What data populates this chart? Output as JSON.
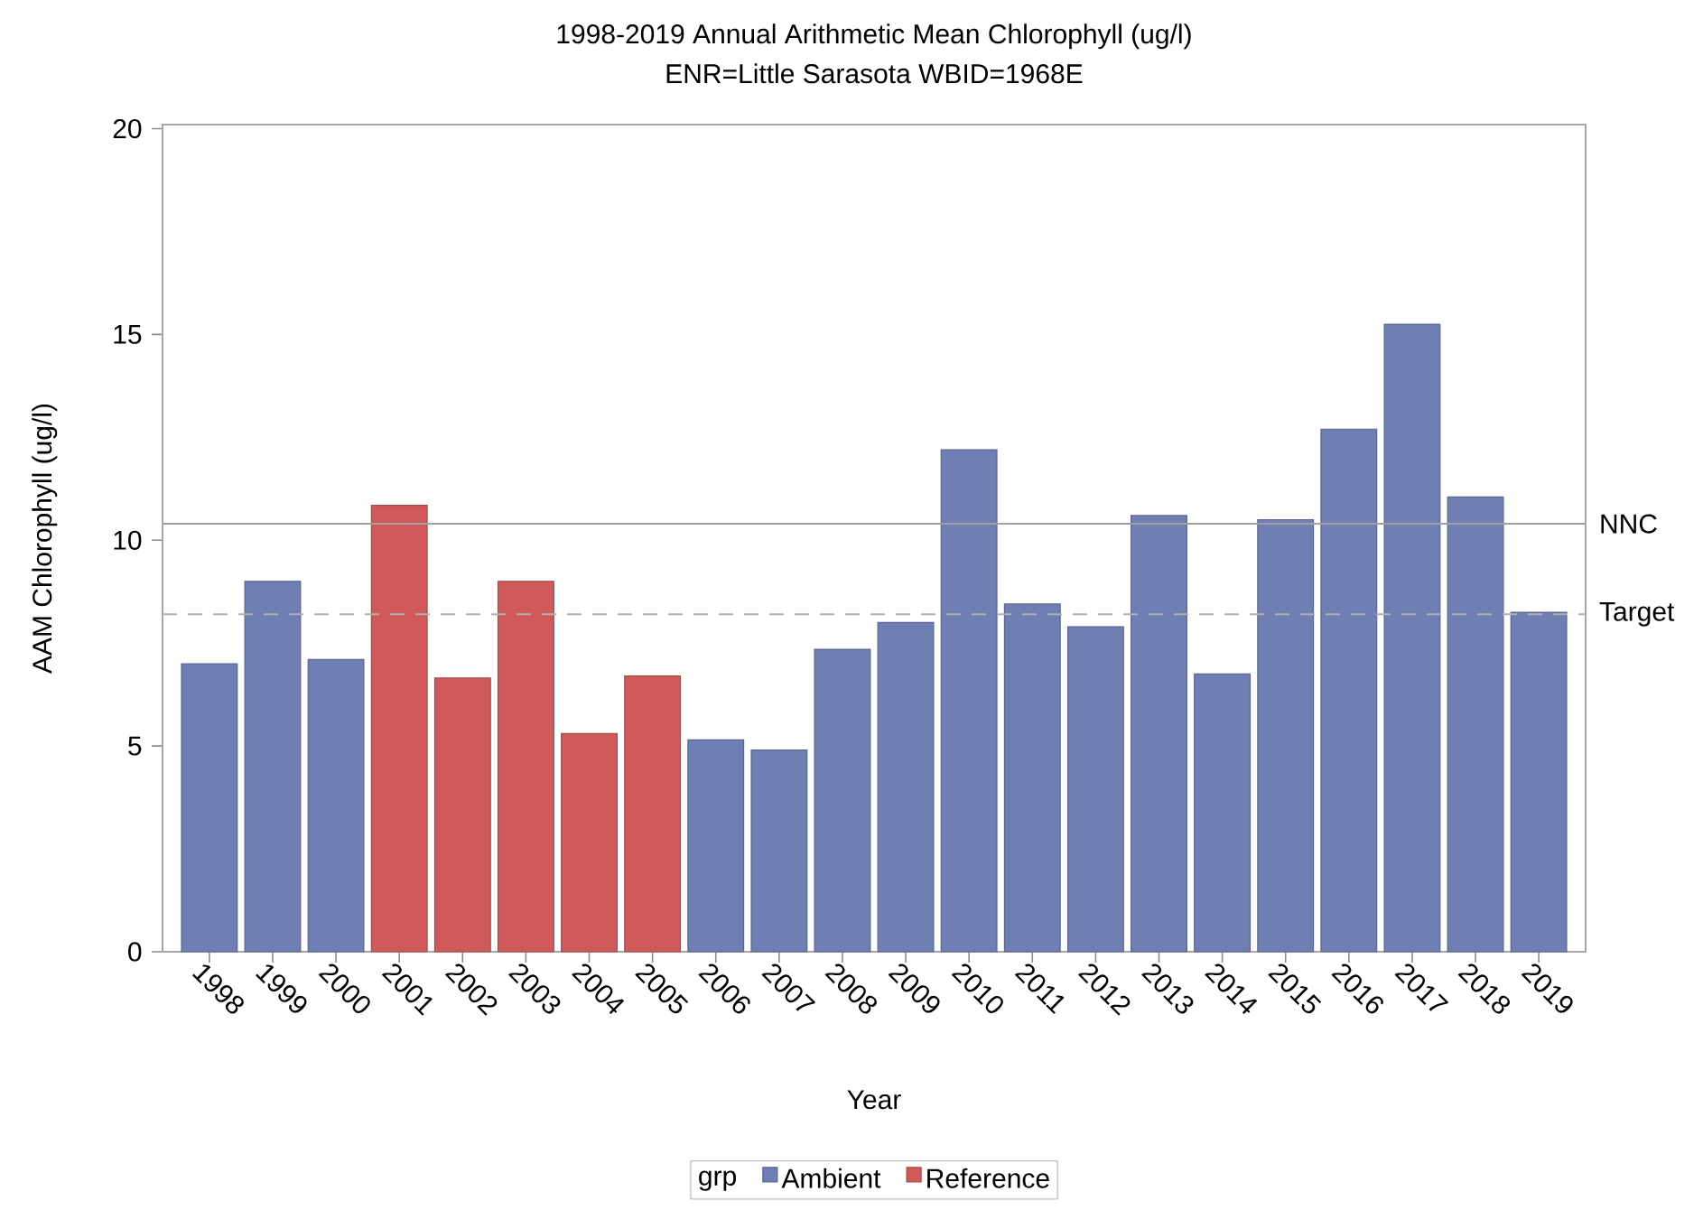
{
  "chart_data": {
    "type": "bar",
    "title": "1998-2019 Annual Arithmetic Mean Chlorophyll (ug/l)",
    "subtitle": "ENR=Little Sarasota WBID=1968E",
    "xlabel": "Year",
    "ylabel": "AAM Chlorophyll (ug/l)",
    "legend_title": "grp",
    "categories": [
      "1998",
      "1999",
      "2000",
      "2001",
      "2002",
      "2003",
      "2004",
      "2005",
      "2006",
      "2007",
      "2008",
      "2009",
      "2010",
      "2011",
      "2012",
      "2013",
      "2014",
      "2015",
      "2016",
      "2017",
      "2018",
      "2019"
    ],
    "series": [
      {
        "name": "Ambient",
        "color": "#6f7eb3",
        "values": [
          7.0,
          9.0,
          7.1,
          null,
          null,
          null,
          null,
          null,
          5.15,
          4.9,
          7.35,
          8.0,
          12.2,
          8.45,
          7.9,
          10.6,
          6.75,
          10.5,
          12.7,
          15.25,
          11.05,
          8.25
        ]
      },
      {
        "name": "Reference",
        "color": "#d05a5a",
        "values": [
          null,
          null,
          null,
          10.85,
          6.65,
          9.0,
          5.3,
          6.7,
          null,
          null,
          null,
          null,
          null,
          null,
          null,
          null,
          null,
          null,
          null,
          null,
          null,
          null
        ]
      }
    ],
    "ylim": [
      0,
      20.1
    ],
    "yticks": [
      0,
      5,
      10,
      15,
      20
    ],
    "ref_lines": [
      {
        "axis": "y",
        "value": 10.4,
        "label": "NNC",
        "color": "#a0a0a0",
        "line_style": "solid"
      },
      {
        "axis": "y",
        "value": 8.2,
        "label": "Target",
        "color": "#b0b0b0",
        "line_style": "dashed"
      }
    ],
    "legend": "bottom"
  }
}
